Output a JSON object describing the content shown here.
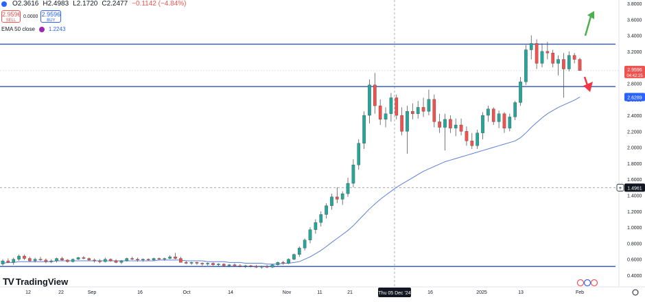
{
  "header": {
    "open": "O2.3616",
    "high": "H2.4983",
    "low": "L2.1720",
    "close": "C2.2477",
    "change": "−0.1142 (−4.84%)"
  },
  "trade": {
    "sell_price": "2.9596",
    "sell_label": "SELL",
    "spread": "0.0000",
    "buy_price": "2.9596",
    "buy_label": "BUY"
  },
  "indicator": {
    "label": "EMA 50 close",
    "value": "1.2243"
  },
  "price_tags": {
    "last_price": "2.9596",
    "countdown": "04:42:25",
    "ema_price": "2.6289",
    "cursor_price": "1.4961"
  },
  "cursor_date": "Thu 05 Dec '24",
  "brand": "TradingView",
  "colors": {
    "up": "#26a69a",
    "down": "#ef5350",
    "ema": "#5b7fd6",
    "hline": "#3d5fc4",
    "green_arrow": "#4caf50",
    "red_arrow": "#f23645",
    "price_tag": "#ef5350",
    "ema_tag": "#2962ff",
    "cursor_tag": "#131722"
  },
  "chart_data": {
    "type": "candlestick",
    "y_axis_ticks": [
      "0.4000",
      "0.6000",
      "0.8000",
      "1.0000",
      "1.2000",
      "1.4000",
      "1.6000",
      "1.8000",
      "2.0000",
      "2.2000",
      "2.4000",
      "2.6000",
      "2.8000",
      "3.0000",
      "3.2000",
      "3.4000",
      "3.6000",
      "3.8000"
    ],
    "ylim": [
      0.4,
      3.8
    ],
    "x_axis_ticks": [
      "12",
      "22",
      "Sep",
      "16",
      "Oct",
      "14",
      "Nov",
      "11",
      "21",
      "16",
      "2025",
      "13",
      "Feb"
    ],
    "horizontal_lines": [
      3.29,
      2.76,
      0.51
    ],
    "last_price": 2.9596,
    "ema_last": 2.6289,
    "cursor_price": 1.4961,
    "candles": [
      [
        0.54,
        0.6,
        0.52,
        0.58
      ],
      [
        0.58,
        0.61,
        0.55,
        0.56
      ],
      [
        0.56,
        0.62,
        0.53,
        0.6
      ],
      [
        0.6,
        0.66,
        0.58,
        0.64
      ],
      [
        0.64,
        0.66,
        0.59,
        0.61
      ],
      [
        0.61,
        0.63,
        0.57,
        0.58
      ],
      [
        0.58,
        0.62,
        0.56,
        0.6
      ],
      [
        0.6,
        0.63,
        0.58,
        0.59
      ],
      [
        0.59,
        0.61,
        0.55,
        0.57
      ],
      [
        0.57,
        0.6,
        0.55,
        0.58
      ],
      [
        0.58,
        0.62,
        0.56,
        0.61
      ],
      [
        0.61,
        0.63,
        0.58,
        0.59
      ],
      [
        0.59,
        0.6,
        0.56,
        0.57
      ],
      [
        0.57,
        0.61,
        0.56,
        0.6
      ],
      [
        0.6,
        0.63,
        0.59,
        0.62
      ],
      [
        0.62,
        0.64,
        0.6,
        0.61
      ],
      [
        0.61,
        0.62,
        0.58,
        0.59
      ],
      [
        0.59,
        0.61,
        0.56,
        0.58
      ],
      [
        0.58,
        0.6,
        0.55,
        0.57
      ],
      [
        0.57,
        0.62,
        0.56,
        0.6
      ],
      [
        0.6,
        0.61,
        0.57,
        0.58
      ],
      [
        0.58,
        0.6,
        0.55,
        0.56
      ],
      [
        0.56,
        0.59,
        0.54,
        0.58
      ],
      [
        0.58,
        0.62,
        0.57,
        0.61
      ],
      [
        0.61,
        0.63,
        0.59,
        0.6
      ],
      [
        0.6,
        0.62,
        0.57,
        0.59
      ],
      [
        0.59,
        0.61,
        0.57,
        0.6
      ],
      [
        0.6,
        0.61,
        0.58,
        0.59
      ],
      [
        0.59,
        0.62,
        0.58,
        0.61
      ],
      [
        0.61,
        0.62,
        0.59,
        0.6
      ],
      [
        0.6,
        0.62,
        0.58,
        0.61
      ],
      [
        0.61,
        0.65,
        0.6,
        0.63
      ],
      [
        0.63,
        0.68,
        0.6,
        0.61
      ],
      [
        0.61,
        0.63,
        0.56,
        0.56
      ],
      [
        0.56,
        0.58,
        0.54,
        0.55
      ],
      [
        0.55,
        0.57,
        0.53,
        0.56
      ],
      [
        0.56,
        0.57,
        0.53,
        0.55
      ],
      [
        0.55,
        0.56,
        0.52,
        0.54
      ],
      [
        0.54,
        0.56,
        0.52,
        0.55
      ],
      [
        0.55,
        0.56,
        0.52,
        0.53
      ],
      [
        0.53,
        0.55,
        0.51,
        0.54
      ],
      [
        0.54,
        0.55,
        0.51,
        0.52
      ],
      [
        0.52,
        0.54,
        0.5,
        0.53
      ],
      [
        0.53,
        0.55,
        0.51,
        0.52
      ],
      [
        0.52,
        0.54,
        0.5,
        0.51
      ],
      [
        0.51,
        0.53,
        0.49,
        0.52
      ],
      [
        0.52,
        0.53,
        0.5,
        0.51
      ],
      [
        0.51,
        0.53,
        0.49,
        0.5
      ],
      [
        0.5,
        0.52,
        0.48,
        0.51
      ],
      [
        0.51,
        0.53,
        0.49,
        0.5
      ],
      [
        0.5,
        0.54,
        0.49,
        0.53
      ],
      [
        0.53,
        0.57,
        0.52,
        0.56
      ],
      [
        0.56,
        0.58,
        0.53,
        0.55
      ],
      [
        0.55,
        0.61,
        0.54,
        0.6
      ],
      [
        0.6,
        0.67,
        0.59,
        0.66
      ],
      [
        0.66,
        0.76,
        0.63,
        0.74
      ],
      [
        0.74,
        0.86,
        0.71,
        0.84
      ],
      [
        0.84,
        1.0,
        0.8,
        0.97
      ],
      [
        0.97,
        1.1,
        0.92,
        1.06
      ],
      [
        1.06,
        1.2,
        1.01,
        1.16
      ],
      [
        1.16,
        1.3,
        1.11,
        1.27
      ],
      [
        1.27,
        1.42,
        1.22,
        1.38
      ],
      [
        1.38,
        1.5,
        1.3,
        1.35
      ],
      [
        1.35,
        1.45,
        1.28,
        1.42
      ],
      [
        1.42,
        1.62,
        1.38,
        1.55
      ],
      [
        1.55,
        1.85,
        1.5,
        1.78
      ],
      [
        1.78,
        2.1,
        1.72,
        2.05
      ],
      [
        2.05,
        2.45,
        1.98,
        2.4
      ],
      [
        2.4,
        2.85,
        2.3,
        2.78
      ],
      [
        2.78,
        2.93,
        2.42,
        2.52
      ],
      [
        2.52,
        2.6,
        2.28,
        2.35
      ],
      [
        2.35,
        2.5,
        2.25,
        2.42
      ],
      [
        2.42,
        2.68,
        2.32,
        2.62
      ],
      [
        2.62,
        2.66,
        2.35,
        2.4
      ],
      [
        2.4,
        2.5,
        2.15,
        2.2
      ],
      [
        2.2,
        2.52,
        1.92,
        2.45
      ],
      [
        2.45,
        2.55,
        2.35,
        2.42
      ],
      [
        2.42,
        2.58,
        2.36,
        2.5
      ],
      [
        2.5,
        2.62,
        2.38,
        2.45
      ],
      [
        2.45,
        2.72,
        2.4,
        2.6
      ],
      [
        2.6,
        2.66,
        2.25,
        2.32
      ],
      [
        2.32,
        2.42,
        2.18,
        2.25
      ],
      [
        2.25,
        2.42,
        1.96,
        2.35
      ],
      [
        2.35,
        2.4,
        2.18,
        2.24
      ],
      [
        2.24,
        2.36,
        2.14,
        2.28
      ],
      [
        2.28,
        2.36,
        2.15,
        2.2
      ],
      [
        2.2,
        2.26,
        2.02,
        2.08
      ],
      [
        2.08,
        2.18,
        1.98,
        2.02
      ],
      [
        2.02,
        2.22,
        1.98,
        2.18
      ],
      [
        2.18,
        2.44,
        2.1,
        2.4
      ],
      [
        2.4,
        2.52,
        2.32,
        2.48
      ],
      [
        2.48,
        2.5,
        2.28,
        2.32
      ],
      [
        2.32,
        2.46,
        2.24,
        2.42
      ],
      [
        2.42,
        2.44,
        2.18,
        2.24
      ],
      [
        2.24,
        2.42,
        2.2,
        2.38
      ],
      [
        2.38,
        2.58,
        2.34,
        2.56
      ],
      [
        2.56,
        2.88,
        2.52,
        2.82
      ],
      [
        2.82,
        3.28,
        2.78,
        3.22
      ],
      [
        3.22,
        3.4,
        3.1,
        3.3
      ],
      [
        3.3,
        3.35,
        2.98,
        3.05
      ],
      [
        3.05,
        3.3,
        3.0,
        3.2
      ],
      [
        3.2,
        3.32,
        3.1,
        3.18
      ],
      [
        3.18,
        3.22,
        3.0,
        3.05
      ],
      [
        3.05,
        3.15,
        2.9,
        3.1
      ],
      [
        3.1,
        3.18,
        2.62,
        2.98
      ],
      [
        2.98,
        3.2,
        2.95,
        3.15
      ],
      [
        3.15,
        3.18,
        3.05,
        3.1
      ],
      [
        3.1,
        3.12,
        2.96,
        2.96
      ]
    ],
    "ema": [
      0.55,
      0.56,
      0.56,
      0.57,
      0.57,
      0.57,
      0.57,
      0.57,
      0.57,
      0.57,
      0.58,
      0.58,
      0.58,
      0.58,
      0.58,
      0.58,
      0.58,
      0.58,
      0.58,
      0.58,
      0.58,
      0.58,
      0.58,
      0.58,
      0.58,
      0.58,
      0.58,
      0.58,
      0.58,
      0.59,
      0.59,
      0.59,
      0.59,
      0.59,
      0.58,
      0.58,
      0.58,
      0.58,
      0.57,
      0.57,
      0.57,
      0.57,
      0.56,
      0.56,
      0.56,
      0.55,
      0.55,
      0.55,
      0.55,
      0.54,
      0.54,
      0.54,
      0.55,
      0.55,
      0.56,
      0.57,
      0.6,
      0.63,
      0.67,
      0.71,
      0.76,
      0.81,
      0.86,
      0.91,
      0.96,
      1.02,
      1.09,
      1.16,
      1.23,
      1.29,
      1.35,
      1.4,
      1.45,
      1.5,
      1.54,
      1.58,
      1.62,
      1.66,
      1.7,
      1.73,
      1.76,
      1.79,
      1.82,
      1.84,
      1.86,
      1.88,
      1.9,
      1.92,
      1.94,
      1.96,
      1.98,
      2.0,
      2.02,
      2.04,
      2.06,
      2.08,
      2.12,
      2.18,
      2.25,
      2.31,
      2.37,
      2.42,
      2.46,
      2.5,
      2.53,
      2.56,
      2.59,
      2.6289
    ]
  }
}
